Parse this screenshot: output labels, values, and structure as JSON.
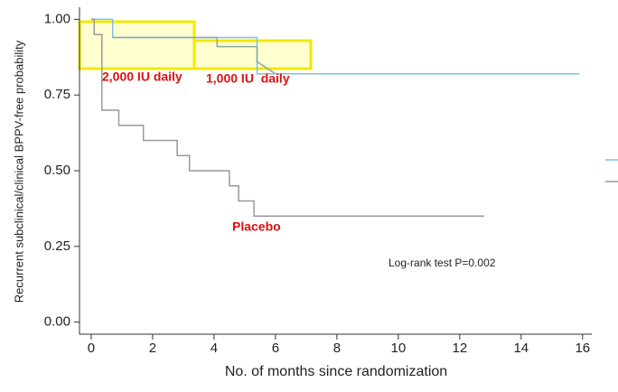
{
  "chart_data": {
    "type": "step",
    "x_label": "No. of months since randomization",
    "y_label": "Recurrent subclinical/clinical BPPV-free probability",
    "xlim": [
      -0.38,
      16.3
    ],
    "ylim": [
      -0.04,
      1.04
    ],
    "xticks": [
      0,
      2,
      4,
      6,
      8,
      10,
      12,
      14,
      16
    ],
    "yticks": [
      {
        "value": 0,
        "label": "0.00"
      },
      {
        "value": 0.25,
        "label": "0.25"
      },
      {
        "value": 0.5,
        "label": "0.50"
      },
      {
        "value": 0.75,
        "label": "0.75"
      },
      {
        "value": 1,
        "label": "1.00"
      }
    ],
    "series": [
      {
        "color": "#7fbfe6",
        "x": [
          0,
          0.7,
          0.7,
          5.4,
          5.4,
          15.9
        ],
        "values": [
          1,
          1,
          0.94,
          0.94,
          0.82,
          0.82
        ]
      },
      {
        "color": "#8ea7a0",
        "x": [
          0.7,
          4.1,
          4.1,
          5.4,
          5.4,
          6
        ],
        "values": [
          0.94,
          0.94,
          0.91,
          0.91,
          0.86,
          0.82
        ]
      },
      {
        "color": "#999999",
        "x": [
          0,
          0.1,
          0.1,
          0.35,
          0.35,
          0.9,
          0.9,
          1.7,
          1.7,
          2.8,
          2.8,
          3.2,
          3.2,
          4.5,
          4.5,
          4.8,
          4.8,
          5.3,
          5.3,
          12.8
        ],
        "values": [
          1,
          1,
          0.95,
          0.95,
          0.7,
          0.7,
          0.65,
          0.65,
          0.6,
          0.6,
          0.55,
          0.55,
          0.5,
          0.5,
          0.45,
          0.45,
          0.4,
          0.4,
          0.35,
          0.35
        ]
      }
    ],
    "annotations": [
      "2,000 IU daily",
      "1,000 IU  daily",
      "Placebo",
      "Log-rank test P=0.002"
    ]
  }
}
